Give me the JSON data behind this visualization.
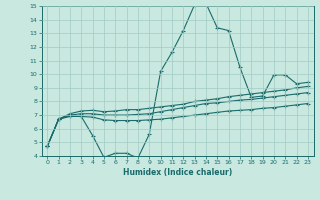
{
  "title": "",
  "xlabel": "Humidex (Indice chaleur)",
  "xlim": [
    -0.5,
    23.5
  ],
  "ylim": [
    4,
    15
  ],
  "xticks": [
    0,
    1,
    2,
    3,
    4,
    5,
    6,
    7,
    8,
    9,
    10,
    11,
    12,
    13,
    14,
    15,
    16,
    17,
    18,
    19,
    20,
    21,
    22,
    23
  ],
  "yticks": [
    4,
    5,
    6,
    7,
    8,
    9,
    10,
    11,
    12,
    13,
    14,
    15
  ],
  "bg_color": "#c8e8e0",
  "grid_color": "#a0ccc4",
  "line_color": "#1a6b6b",
  "line1_y": [
    4.7,
    6.7,
    6.9,
    6.9,
    5.5,
    3.9,
    4.2,
    4.2,
    3.85,
    5.6,
    10.2,
    11.6,
    13.2,
    15.1,
    15.2,
    13.4,
    13.2,
    10.5,
    8.3,
    8.4,
    9.95,
    9.95,
    9.3,
    9.4
  ],
  "line2_y": [
    4.7,
    6.7,
    7.1,
    7.3,
    7.35,
    7.25,
    7.3,
    7.4,
    7.4,
    7.5,
    7.6,
    7.7,
    7.8,
    8.0,
    8.1,
    8.2,
    8.35,
    8.45,
    8.55,
    8.65,
    8.75,
    8.85,
    9.0,
    9.1
  ],
  "line3_y": [
    4.7,
    6.7,
    7.0,
    7.1,
    7.1,
    7.0,
    7.0,
    7.0,
    7.05,
    7.1,
    7.25,
    7.4,
    7.55,
    7.7,
    7.85,
    7.9,
    8.0,
    8.1,
    8.15,
    8.25,
    8.35,
    8.45,
    8.55,
    8.65
  ],
  "line4_y": [
    4.7,
    6.7,
    6.95,
    6.9,
    6.85,
    6.65,
    6.6,
    6.6,
    6.6,
    6.65,
    6.7,
    6.8,
    6.9,
    7.0,
    7.1,
    7.2,
    7.3,
    7.35,
    7.4,
    7.5,
    7.55,
    7.65,
    7.75,
    7.85
  ]
}
